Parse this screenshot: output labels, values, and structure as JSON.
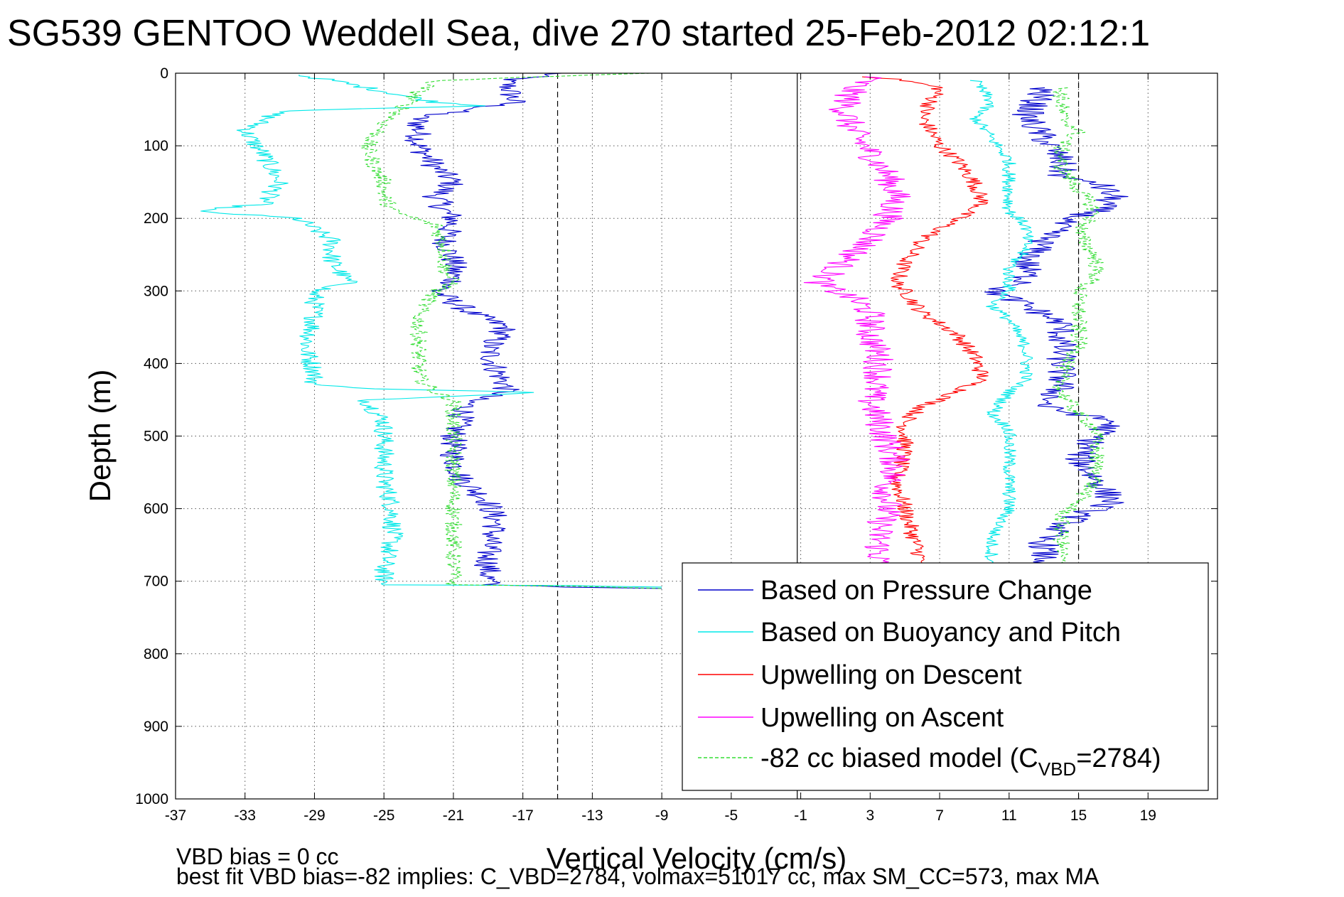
{
  "chart_data": {
    "type": "line",
    "title": "SG539 GENTOO Weddell Sea, dive 270 started 25-Feb-2012 02:12:1",
    "xlabel": "Vertical Velocity (cm/s)",
    "ylabel": "Depth (m)",
    "xlim": [
      -37,
      23
    ],
    "ylim": [
      0,
      1000
    ],
    "y_reversed": true,
    "grid": true,
    "xticks": [
      "-37",
      "-33",
      "-29",
      "-25",
      "-21",
      "-17",
      "-13",
      "-9",
      "-5",
      "-1",
      "3",
      "7",
      "11",
      "15",
      "19"
    ],
    "xtick_values": [
      -37,
      -33,
      -29,
      -25,
      -21,
      -17,
      -13,
      -9,
      -5,
      -1,
      3,
      7,
      11,
      15,
      19
    ],
    "yticks": [
      "0",
      "100",
      "200",
      "300",
      "400",
      "500",
      "600",
      "700",
      "800",
      "900",
      "1000"
    ],
    "ytick_values": [
      0,
      100,
      200,
      300,
      400,
      500,
      600,
      700,
      800,
      900,
      1000
    ],
    "reference_lines": [
      {
        "x": -15.0,
        "style": "dashed"
      },
      {
        "x": -1.2,
        "style": "solid"
      },
      {
        "x": 15.0,
        "style": "dashed"
      }
    ],
    "legend_position": "lower-right",
    "series": [
      {
        "name": "Based on Pressure Change",
        "color": "#0000cc",
        "style": "solid",
        "jitter": 0.8,
        "points": [
          [
            -15,
            0
          ],
          [
            -18,
            10
          ],
          [
            -17.5,
            40
          ],
          [
            -20,
            50
          ],
          [
            -23,
            60
          ],
          [
            -23,
            100
          ],
          [
            -22,
            130
          ],
          [
            -21,
            150
          ],
          [
            -22,
            170
          ],
          [
            -21.5,
            190
          ],
          [
            -21,
            200
          ],
          [
            -21.5,
            230
          ],
          [
            -21,
            260
          ],
          [
            -21,
            290
          ],
          [
            -22,
            300
          ],
          [
            -20,
            330
          ],
          [
            -18,
            350
          ],
          [
            -19,
            380
          ],
          [
            -18.5,
            410
          ],
          [
            -18,
            430
          ],
          [
            -18,
            440
          ],
          [
            -20,
            450
          ],
          [
            -20.5,
            470
          ],
          [
            -21,
            500
          ],
          [
            -21,
            530
          ],
          [
            -20.5,
            560
          ],
          [
            -19,
            590
          ],
          [
            -18.5,
            620
          ],
          [
            -19,
            650
          ],
          [
            -19,
            690
          ],
          [
            -19,
            705
          ],
          [
            -14,
            708
          ],
          [
            -9,
            710
          ]
        ]
      },
      {
        "name": "Based on Buoyancy and Pitch",
        "color": "#00e8e8",
        "style": "solid",
        "jitter": 0.6,
        "points": [
          [
            -30,
            2
          ],
          [
            -28,
            10
          ],
          [
            -25,
            25
          ],
          [
            -22,
            40
          ],
          [
            -19,
            45
          ],
          [
            -31,
            52
          ],
          [
            -33,
            80
          ],
          [
            -32,
            110
          ],
          [
            -31,
            150
          ],
          [
            -32,
            180
          ],
          [
            -36,
            190
          ],
          [
            -30,
            200
          ],
          [
            -28,
            230
          ],
          [
            -28,
            260
          ],
          [
            -27,
            290
          ],
          [
            -29,
            300
          ],
          [
            -29,
            340
          ],
          [
            -29.5,
            380
          ],
          [
            -29,
            410
          ],
          [
            -29,
            430
          ],
          [
            -25,
            435
          ],
          [
            -16,
            440
          ],
          [
            -26,
            450
          ],
          [
            -25,
            480
          ],
          [
            -25,
            520
          ],
          [
            -25,
            560
          ],
          [
            -24.5,
            600
          ],
          [
            -24.5,
            640
          ],
          [
            -25,
            680
          ],
          [
            -25,
            705
          ],
          [
            -14,
            706
          ],
          [
            -12,
            707
          ],
          [
            -9,
            708
          ]
        ]
      },
      {
        "name": "Upwelling on Descent",
        "color": "#ff0000",
        "style": "solid",
        "jitter": 0.5,
        "points": [
          [
            3,
            5
          ],
          [
            5,
            10
          ],
          [
            7,
            20
          ],
          [
            6,
            60
          ],
          [
            7,
            100
          ],
          [
            8,
            120
          ],
          [
            9,
            150
          ],
          [
            9.5,
            180
          ],
          [
            8,
            200
          ],
          [
            6,
            230
          ],
          [
            5,
            260
          ],
          [
            4.5,
            290
          ],
          [
            5,
            300
          ],
          [
            6,
            330
          ],
          [
            8,
            360
          ],
          [
            9,
            390
          ],
          [
            9.5,
            420
          ],
          [
            8,
            440
          ],
          [
            6,
            460
          ],
          [
            5,
            480
          ],
          [
            5,
            520
          ],
          [
            4.5,
            560
          ],
          [
            5,
            600
          ],
          [
            5.5,
            640
          ],
          [
            6,
            675
          ]
        ]
      },
      {
        "name": "Upwelling on Ascent",
        "color": "#ff00ff",
        "style": "solid",
        "jitter": 0.9,
        "points": [
          [
            3,
            5
          ],
          [
            2,
            20
          ],
          [
            1.5,
            50
          ],
          [
            2,
            80
          ],
          [
            3,
            110
          ],
          [
            4,
            140
          ],
          [
            4.5,
            170
          ],
          [
            4,
            200
          ],
          [
            3,
            230
          ],
          [
            1.5,
            260
          ],
          [
            0,
            290
          ],
          [
            2,
            310
          ],
          [
            3,
            330
          ],
          [
            3,
            360
          ],
          [
            3.5,
            390
          ],
          [
            3.5,
            420
          ],
          [
            3,
            450
          ],
          [
            3.5,
            480
          ],
          [
            4,
            510
          ],
          [
            4.5,
            540
          ],
          [
            4,
            570
          ],
          [
            4,
            600
          ],
          [
            3.5,
            630
          ],
          [
            3.5,
            660
          ],
          [
            3.5,
            675
          ]
        ]
      },
      {
        "name": "-82 cc biased model (C_VBD=2784)",
        "color": "#33dd33",
        "style": "dashed",
        "jitter": 0.5,
        "points": [
          [
            -10,
            0
          ],
          [
            -22,
            10
          ],
          [
            -23,
            25
          ],
          [
            -24,
            50
          ],
          [
            -25,
            70
          ],
          [
            -26,
            100
          ],
          [
            -25.5,
            130
          ],
          [
            -25,
            150
          ],
          [
            -25,
            170
          ],
          [
            -24.5,
            190
          ],
          [
            -22,
            210
          ],
          [
            -21.5,
            240
          ],
          [
            -21.5,
            270
          ],
          [
            -21,
            290
          ],
          [
            -22,
            300
          ],
          [
            -23,
            330
          ],
          [
            -23,
            360
          ],
          [
            -23,
            390
          ],
          [
            -23,
            420
          ],
          [
            -22,
            440
          ],
          [
            -21,
            450
          ],
          [
            -21,
            480
          ],
          [
            -21,
            510
          ],
          [
            -21,
            550
          ],
          [
            -21,
            580
          ],
          [
            -21,
            610
          ],
          [
            -21,
            640
          ],
          [
            -21,
            680
          ],
          [
            -21,
            705
          ],
          [
            -14,
            707
          ],
          [
            -9,
            710
          ]
        ]
      },
      {
        "color": "#0000cc",
        "style": "solid",
        "jitter": 0.9,
        "points": [
          [
            13,
            20
          ],
          [
            12,
            60
          ],
          [
            13,
            90
          ],
          [
            14,
            120
          ],
          [
            14,
            145
          ],
          [
            16,
            150
          ],
          [
            17,
            170
          ],
          [
            16,
            190
          ],
          [
            14,
            205
          ],
          [
            13,
            230
          ],
          [
            12,
            260
          ],
          [
            12,
            290
          ],
          [
            10,
            300
          ],
          [
            12,
            320
          ],
          [
            14,
            345
          ],
          [
            14,
            380
          ],
          [
            14,
            410
          ],
          [
            14,
            430
          ],
          [
            13,
            460
          ],
          [
            17,
            480
          ],
          [
            16,
            500
          ],
          [
            15,
            530
          ],
          [
            16,
            560
          ],
          [
            17,
            590
          ],
          [
            15,
            610
          ],
          [
            13,
            640
          ],
          [
            13,
            675
          ]
        ]
      },
      {
        "color": "#00e8e8",
        "style": "solid",
        "jitter": 0.4,
        "points": [
          [
            9,
            10
          ],
          [
            10,
            40
          ],
          [
            9,
            60
          ],
          [
            10,
            90
          ],
          [
            11,
            120
          ],
          [
            11,
            160
          ],
          [
            11,
            190
          ],
          [
            12,
            210
          ],
          [
            12,
            240
          ],
          [
            11,
            270
          ],
          [
            11,
            300
          ],
          [
            10,
            320
          ],
          [
            11,
            340
          ],
          [
            12,
            380
          ],
          [
            12,
            420
          ],
          [
            11,
            440
          ],
          [
            10,
            470
          ],
          [
            11,
            490
          ],
          [
            11,
            520
          ],
          [
            11,
            560
          ],
          [
            11,
            600
          ],
          [
            10,
            640
          ],
          [
            10,
            675
          ]
        ]
      },
      {
        "color": "#33dd33",
        "style": "dashed",
        "jitter": 0.5,
        "points": [
          [
            14,
            20
          ],
          [
            14,
            60
          ],
          [
            15,
            80
          ],
          [
            14,
            100
          ],
          [
            14,
            130
          ],
          [
            15,
            160
          ],
          [
            16,
            190
          ],
          [
            15,
            220
          ],
          [
            16,
            255
          ],
          [
            16,
            280
          ],
          [
            15,
            300
          ],
          [
            15,
            330
          ],
          [
            15,
            350
          ],
          [
            15,
            380
          ],
          [
            14,
            410
          ],
          [
            14,
            440
          ],
          [
            15,
            470
          ],
          [
            16,
            490
          ],
          [
            16,
            530
          ],
          [
            16,
            560
          ],
          [
            15,
            590
          ],
          [
            14,
            610
          ],
          [
            14,
            640
          ],
          [
            14,
            675
          ]
        ]
      }
    ]
  },
  "footer": {
    "line1": "VBD bias = 0 cc",
    "line2": "best fit VBD bias=-82 implies: C_VBD=2784, volmax=51017 cc, max SM_CC=573, max MA"
  },
  "legend": {
    "model_prefix": "-82 cc biased model (C",
    "model_sub": "VBD",
    "model_suffix": "=2784)"
  }
}
